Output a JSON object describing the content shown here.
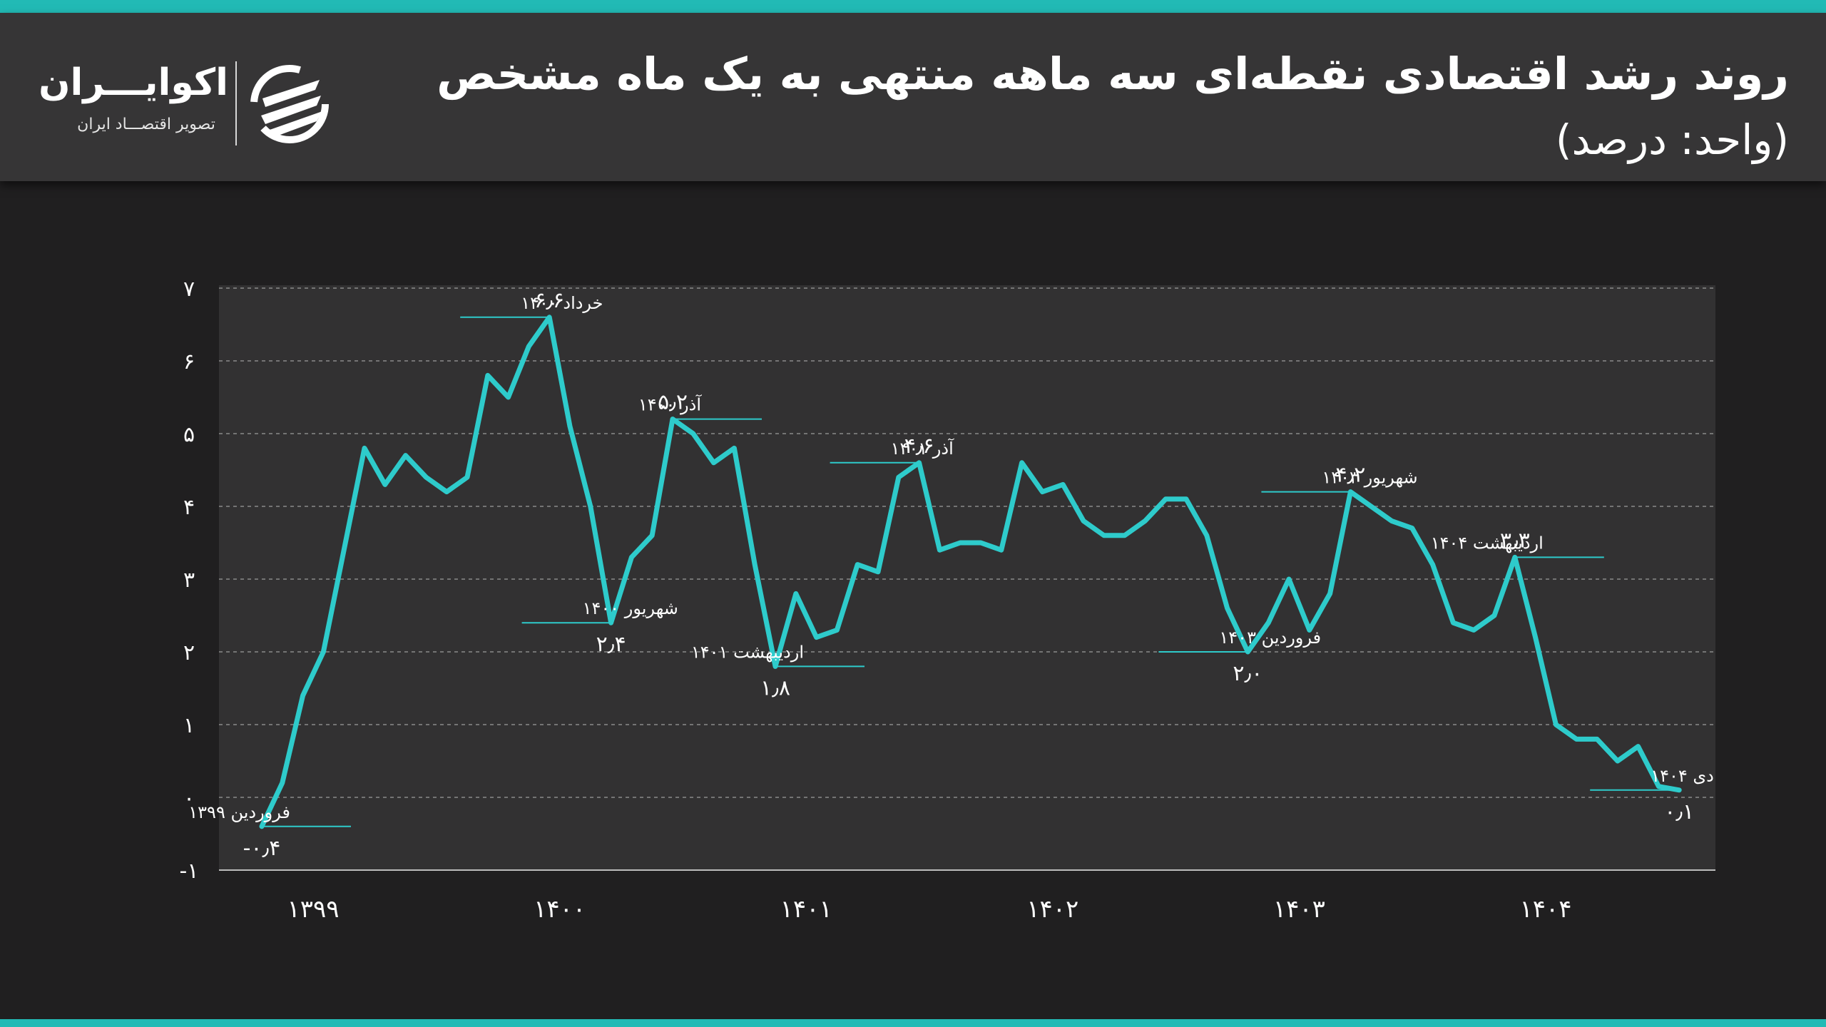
{
  "header": {
    "title": "روند رشد اقتصادی نقطه‌ای سه ماهه منتهی به یک ماه مشخص",
    "subtitle": "(واحد: درصد)",
    "logo_name": "اکوایـــران",
    "logo_tagline": "تصویر اقتصـــاد ایران",
    "logo_icon": "ecoiran-swoosh-icon"
  },
  "colors": {
    "accent": "#22bab5",
    "line": "#2ecbcb",
    "header_bg": "#363536",
    "page_bg": "#201f20",
    "plot_bg": "#323132",
    "grid": "#8a8a8a"
  },
  "chart_data": {
    "type": "line",
    "title": "روند رشد اقتصادی نقطه‌ای سه ماهه منتهی به یک ماه مشخص",
    "subtitle": "(واحد: درصد)",
    "xlabel": "",
    "ylabel": "درصد",
    "ylim": [
      -1,
      7
    ],
    "y_ticks": [
      -1,
      0,
      1,
      2,
      3,
      4,
      5,
      6,
      7
    ],
    "y_tick_labels": [
      "-۱",
      "۰",
      "۱",
      "۲",
      "۳",
      "۴",
      "۵",
      "۶",
      "۷"
    ],
    "grid": true,
    "legend": "none",
    "x_year_labels": [
      "۱۳۹۹",
      "۱۴۰۰",
      "۱۴۰۱",
      "۱۴۰۲",
      "۱۴۰۳",
      "۱۴۰۴"
    ],
    "x_year_label_index": [
      2.5,
      14.5,
      26.5,
      38.5,
      50.5,
      62.5
    ],
    "x_note": "Monthly points from Farvardin 1399 to Dey 1404 (70 months)",
    "series": [
      {
        "name": "رشد اقتصادی نقطه‌ای سه ماهه",
        "values": [
          -0.4,
          0.2,
          1.4,
          2.0,
          3.4,
          4.8,
          4.3,
          4.7,
          4.4,
          4.2,
          4.4,
          5.8,
          5.5,
          6.2,
          6.6,
          5.1,
          4.0,
          2.4,
          3.3,
          3.6,
          5.2,
          5.0,
          4.6,
          4.8,
          3.2,
          1.8,
          2.8,
          2.2,
          2.3,
          3.2,
          3.1,
          4.4,
          4.6,
          3.4,
          3.5,
          3.5,
          3.4,
          4.6,
          4.2,
          4.3,
          3.8,
          3.6,
          3.6,
          3.8,
          4.1,
          4.1,
          3.6,
          2.6,
          2.0,
          2.4,
          3.0,
          2.3,
          2.8,
          4.2,
          4.0,
          3.8,
          3.7,
          3.2,
          2.4,
          2.3,
          2.5,
          3.3,
          2.2,
          1.0,
          0.8,
          0.8,
          0.5,
          0.7,
          0.15,
          0.1
        ]
      }
    ],
    "annotations": [
      {
        "index": 0,
        "label": "فروردین ۱۳۹۹",
        "value_text": "-۰٫۴",
        "value": -0.4,
        "label_side": "right",
        "value_pos": "below"
      },
      {
        "index": 14,
        "label": "خرداد ۱۴۰۰",
        "value_text": "۶٫۶",
        "value": 6.6,
        "label_side": "left",
        "value_pos": "above"
      },
      {
        "index": 17,
        "label": "شهریور ۱۴۰۰",
        "value_text": "۲٫۴",
        "value": 2.4,
        "label_side": "left",
        "value_pos": "below"
      },
      {
        "index": 20,
        "label": "آذر ۱۴۰۰",
        "value_text": "۵٫۲",
        "value": 5.2,
        "label_side": "right",
        "value_pos": "above"
      },
      {
        "index": 25,
        "label": "اردیبهشت ۱۴۰۱",
        "value_text": "۱٫۸",
        "value": 1.8,
        "label_side": "right",
        "value_pos": "below"
      },
      {
        "index": 32,
        "label": "آذر ۱۴۰۱",
        "value_text": "۴٫۶",
        "value": 4.6,
        "label_side": "left",
        "value_pos": "above"
      },
      {
        "index": 48,
        "label": "فروردین ۱۴۰۳",
        "value_text": "۲٫۰",
        "value": 2.0,
        "label_side": "left",
        "value_pos": "below"
      },
      {
        "index": 53,
        "label": "شهریور ۱۴۰۳",
        "value_text": "۴٫۲",
        "value": 4.2,
        "label_side": "left",
        "value_pos": "above"
      },
      {
        "index": 61,
        "label": "اردیبهشت ۱۴۰۴",
        "value_text": "۳٫۳",
        "value": 3.3,
        "label_side": "right",
        "value_pos": "above"
      },
      {
        "index": 69,
        "label": "دی ۱۴۰۴",
        "value_text": "۰٫۱",
        "value": 0.1,
        "label_side": "left",
        "value_pos": "below"
      }
    ]
  }
}
